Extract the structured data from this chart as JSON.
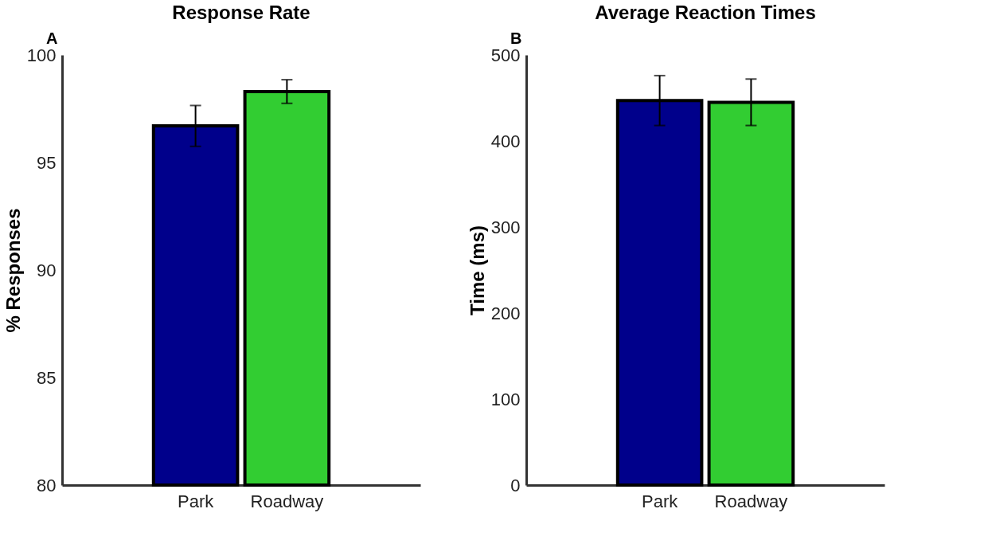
{
  "chart_data": [
    {
      "type": "bar",
      "title": "Response Rate",
      "ylabel": "% Responses",
      "categories": [
        "Park",
        "Roadway"
      ],
      "values": [
        96.7,
        98.3
      ],
      "errors": [
        0.95,
        0.55
      ],
      "colors": [
        "#00008b",
        "#32cd32"
      ],
      "ylim": [
        80,
        100
      ],
      "yticks": [
        80,
        85,
        90,
        95,
        100
      ],
      "grid": false,
      "annotations": [
        "A"
      ]
    },
    {
      "type": "bar",
      "title": "Average Reaction Times",
      "ylabel": "Time (ms)",
      "categories": [
        "Park",
        "Roadway"
      ],
      "values": [
        447,
        445
      ],
      "errors": [
        29,
        27
      ],
      "colors": [
        "#00008b",
        "#32cd32"
      ],
      "ylim": [
        0,
        500
      ],
      "yticks": [
        0,
        100,
        200,
        300,
        400,
        500
      ],
      "grid": false,
      "annotations": [
        "B"
      ]
    }
  ]
}
